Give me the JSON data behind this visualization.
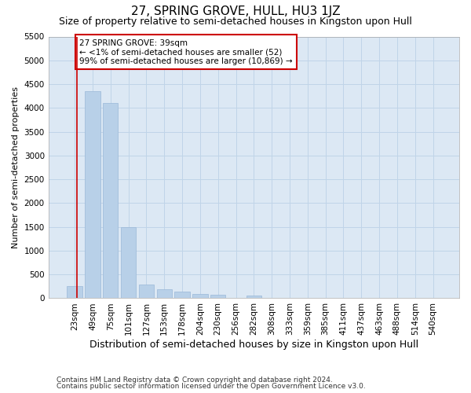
{
  "title": "27, SPRING GROVE, HULL, HU3 1JZ",
  "subtitle": "Size of property relative to semi-detached houses in Kingston upon Hull",
  "xlabel": "Distribution of semi-detached houses by size in Kingston upon Hull",
  "ylabel": "Number of semi-detached properties",
  "footer_line1": "Contains HM Land Registry data © Crown copyright and database right 2024.",
  "footer_line2": "Contains public sector information licensed under the Open Government Licence v3.0.",
  "annotation_title": "27 SPRING GROVE: 39sqm",
  "annotation_line2": "← <1% of semi-detached houses are smaller (52)",
  "annotation_line3": "99% of semi-detached houses are larger (10,869) →",
  "bar_labels": [
    "23sqm",
    "49sqm",
    "75sqm",
    "101sqm",
    "127sqm",
    "153sqm",
    "178sqm",
    "204sqm",
    "230sqm",
    "256sqm",
    "282sqm",
    "308sqm",
    "333sqm",
    "359sqm",
    "385sqm",
    "411sqm",
    "437sqm",
    "463sqm",
    "488sqm",
    "514sqm",
    "540sqm"
  ],
  "bar_values": [
    250,
    4350,
    4100,
    1500,
    295,
    195,
    145,
    95,
    70,
    5,
    55,
    5,
    0,
    0,
    0,
    0,
    0,
    0,
    0,
    0,
    0
  ],
  "bar_color": "#b8d0e8",
  "bar_edge_color": "#9ab8d8",
  "grid_color": "#c0d4e8",
  "background_color": "#dce8f4",
  "annotation_box_color": "#ffffff",
  "annotation_box_edge": "#cc0000",
  "vline_color": "#cc0000",
  "ylim": [
    0,
    5500
  ],
  "yticks": [
    0,
    500,
    1000,
    1500,
    2000,
    2500,
    3000,
    3500,
    4000,
    4500,
    5000,
    5500
  ],
  "title_fontsize": 11,
  "subtitle_fontsize": 9,
  "xlabel_fontsize": 9,
  "ylabel_fontsize": 8,
  "tick_fontsize": 7.5,
  "annotation_fontsize": 7.5,
  "footer_fontsize": 6.5
}
